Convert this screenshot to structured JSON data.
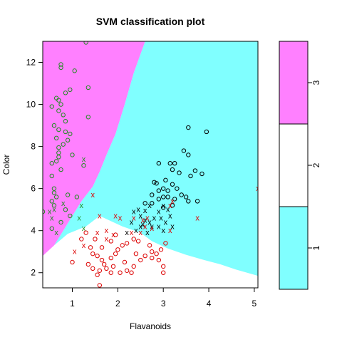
{
  "chart_data": {
    "type": "scatter",
    "title": "SVM classification plot",
    "xlabel": "Flavanoids",
    "ylabel": "Color",
    "xlim": [
      0.35,
      5.08
    ],
    "ylim": [
      1.28,
      13.0
    ],
    "x_ticks": [
      1,
      2,
      3,
      4,
      5
    ],
    "y_ticks": [
      2,
      4,
      6,
      8,
      10,
      12
    ],
    "legend": {
      "placement": "right",
      "levels": [
        {
          "label": "1",
          "color": "#80ffff"
        },
        {
          "label": "2",
          "color": "#ffffff"
        },
        {
          "label": "3",
          "color": "#ff80ff"
        }
      ]
    },
    "regions": {
      "class3_color": "#ff80ff",
      "class1_color": "#80ffff",
      "class2_color": "#ffffff",
      "class3_boundary": [
        [
          0.35,
          2.8
        ],
        [
          0.6,
          3.3
        ],
        [
          0.8,
          4.0
        ],
        [
          1.0,
          4.7
        ],
        [
          1.2,
          5.4
        ],
        [
          1.45,
          6.1
        ],
        [
          1.6,
          6.8
        ],
        [
          1.75,
          7.6
        ],
        [
          1.95,
          8.6
        ],
        [
          2.15,
          10.0
        ],
        [
          2.35,
          11.5
        ],
        [
          2.6,
          13.0
        ]
      ],
      "class2_boundary": [
        [
          0.6,
          3.3
        ],
        [
          0.9,
          3.85
        ],
        [
          1.3,
          4.2
        ],
        [
          1.6,
          4.7
        ],
        [
          1.85,
          4.45
        ],
        [
          2.1,
          4.2
        ],
        [
          2.5,
          3.9
        ],
        [
          2.75,
          3.5
        ],
        [
          3.1,
          3.15
        ],
        [
          3.5,
          2.85
        ],
        [
          3.9,
          2.6
        ],
        [
          4.25,
          2.4
        ],
        [
          4.6,
          2.15
        ],
        [
          5.08,
          1.85
        ]
      ]
    },
    "series": [
      {
        "class": "3",
        "color": "#228B22",
        "support_vectors": [
          [
            1.25,
            7.4
          ],
          [
            0.55,
            4.6
          ],
          [
            0.5,
            4.9
          ],
          [
            0.6,
            5.0
          ],
          [
            0.8,
            5.3
          ],
          [
            0.65,
            3.9
          ],
          [
            1.2,
            5.2
          ],
          [
            1.15,
            4.6
          ],
          [
            1.25,
            4.1
          ]
        ],
        "points": [
          [
            1.3,
            12.95
          ],
          [
            0.75,
            11.9
          ],
          [
            0.75,
            11.75
          ],
          [
            1.05,
            11.6
          ],
          [
            0.95,
            10.7
          ],
          [
            0.85,
            10.55
          ],
          [
            1.35,
            10.8
          ],
          [
            0.65,
            10.3
          ],
          [
            0.7,
            10.2
          ],
          [
            0.75,
            10.0
          ],
          [
            0.55,
            9.9
          ],
          [
            0.7,
            9.7
          ],
          [
            0.8,
            9.5
          ],
          [
            0.85,
            9.2
          ],
          [
            1.35,
            9.4
          ],
          [
            0.6,
            9.0
          ],
          [
            0.7,
            8.8
          ],
          [
            0.85,
            8.7
          ],
          [
            0.9,
            8.3
          ],
          [
            0.95,
            8.6
          ],
          [
            0.65,
            8.4
          ],
          [
            0.8,
            8.1
          ],
          [
            0.7,
            7.95
          ],
          [
            0.7,
            7.7
          ],
          [
            0.7,
            7.5
          ],
          [
            0.65,
            7.3
          ],
          [
            0.55,
            7.2
          ],
          [
            0.55,
            6.6
          ],
          [
            1.0,
            7.6
          ],
          [
            0.75,
            6.9
          ],
          [
            1.25,
            7.1
          ],
          [
            0.6,
            6.0
          ],
          [
            0.6,
            5.8
          ],
          [
            0.65,
            5.6
          ],
          [
            0.55,
            5.4
          ],
          [
            0.6,
            5.2
          ],
          [
            0.9,
            5.7
          ],
          [
            1.1,
            5.6
          ],
          [
            0.35,
            4.9
          ],
          [
            0.55,
            4.1
          ],
          [
            0.75,
            4.4
          ],
          [
            0.85,
            5.0
          ],
          [
            0.95,
            4.7
          ]
        ]
      },
      {
        "class": "2",
        "color": "#000000",
        "support_vectors": [
          [
            2.5,
            4.7
          ],
          [
            2.6,
            4.5
          ],
          [
            2.7,
            4.4
          ],
          [
            2.55,
            4.3
          ],
          [
            2.75,
            4.2
          ],
          [
            2.8,
            4.6
          ],
          [
            2.9,
            4.9
          ],
          [
            3.0,
            5.2
          ],
          [
            2.95,
            4.6
          ],
          [
            3.05,
            4.4
          ],
          [
            3.15,
            4.7
          ],
          [
            3.1,
            5.0
          ],
          [
            2.35,
            4.9
          ],
          [
            2.45,
            5.0
          ],
          [
            2.3,
            4.4
          ],
          [
            2.4,
            4.0
          ],
          [
            2.2,
            3.9
          ],
          [
            2.65,
            3.9
          ],
          [
            2.9,
            4.2
          ],
          [
            3.0,
            4.0
          ],
          [
            2.5,
            4.2
          ],
          [
            2.7,
            5.2
          ],
          [
            2.6,
            4.95
          ],
          [
            3.2,
            4.2
          ]
        ],
        "points": [
          [
            3.55,
            8.9
          ],
          [
            3.95,
            8.7
          ],
          [
            3.45,
            7.8
          ],
          [
            3.55,
            7.6
          ],
          [
            2.9,
            7.2
          ],
          [
            3.15,
            7.2
          ],
          [
            3.25,
            7.2
          ],
          [
            3.2,
            6.9
          ],
          [
            3.35,
            6.75
          ],
          [
            3.7,
            6.85
          ],
          [
            3.6,
            6.6
          ],
          [
            3.85,
            6.7
          ],
          [
            2.8,
            6.3
          ],
          [
            2.85,
            6.25
          ],
          [
            3.05,
            6.4
          ],
          [
            3.2,
            6.2
          ],
          [
            3.0,
            6.0
          ],
          [
            2.9,
            5.9
          ],
          [
            3.1,
            5.9
          ],
          [
            3.3,
            6.0
          ],
          [
            3.1,
            5.6
          ],
          [
            3.25,
            5.5
          ],
          [
            3.0,
            5.6
          ],
          [
            3.5,
            5.6
          ],
          [
            3.4,
            5.7
          ],
          [
            2.9,
            5.5
          ],
          [
            2.75,
            5.3
          ],
          [
            3.0,
            5.1
          ],
          [
            3.2,
            5.2
          ],
          [
            3.55,
            5.4
          ],
          [
            3.75,
            5.4
          ],
          [
            2.6,
            5.3
          ],
          [
            2.75,
            5.7
          ]
        ]
      },
      {
        "class": "1",
        "color": "#dd0000",
        "support_vectors": [
          [
            1.45,
            5.7
          ],
          [
            1.6,
            4.7
          ],
          [
            1.95,
            4.7
          ],
          [
            2.05,
            4.6
          ],
          [
            2.35,
            4.6
          ],
          [
            2.55,
            4.5
          ],
          [
            2.65,
            4.6
          ],
          [
            1.75,
            4.0
          ],
          [
            1.9,
            3.8
          ],
          [
            2.6,
            4.2
          ],
          [
            2.75,
            4.1
          ],
          [
            1.75,
            3.6
          ],
          [
            2.3,
            3.9
          ],
          [
            2.5,
            3.9
          ],
          [
            3.15,
            5.2
          ],
          [
            3.2,
            5.4
          ],
          [
            3.15,
            4.0
          ],
          [
            3.75,
            4.6
          ],
          [
            5.08,
            6.0
          ],
          [
            1.25,
            3.3
          ],
          [
            1.05,
            3.0
          ],
          [
            1.55,
            3.9
          ]
        ],
        "points": [
          [
            1.5,
            3.6
          ],
          [
            1.65,
            3.2
          ],
          [
            1.85,
            3.5
          ],
          [
            1.95,
            3.8
          ],
          [
            2.1,
            3.3
          ],
          [
            2.2,
            3.4
          ],
          [
            2.35,
            3.6
          ],
          [
            2.45,
            3.5
          ],
          [
            1.4,
            3.2
          ],
          [
            1.45,
            2.9
          ],
          [
            1.55,
            2.8
          ],
          [
            1.65,
            2.6
          ],
          [
            1.7,
            2.4
          ],
          [
            1.85,
            2.7
          ],
          [
            1.95,
            2.9
          ],
          [
            2.0,
            3.1
          ],
          [
            1.6,
            2.1
          ],
          [
            1.75,
            2.2
          ],
          [
            2.05,
            2.0
          ],
          [
            2.2,
            2.1
          ],
          [
            2.35,
            2.3
          ],
          [
            2.5,
            2.6
          ],
          [
            2.6,
            2.8
          ],
          [
            2.75,
            3.0
          ],
          [
            2.85,
            2.9
          ],
          [
            2.95,
            3.1
          ],
          [
            3.05,
            3.4
          ],
          [
            2.9,
            2.6
          ],
          [
            3.0,
            2.3
          ],
          [
            1.85,
            2.0
          ],
          [
            2.15,
            2.5
          ],
          [
            1.2,
            3.6
          ],
          [
            1.3,
            3.9
          ],
          [
            1.35,
            2.4
          ],
          [
            1.45,
            2.2
          ],
          [
            1.55,
            1.9
          ],
          [
            1.0,
            2.5
          ],
          [
            1.6,
            1.4
          ],
          [
            2.3,
            2.0
          ],
          [
            2.75,
            2.7
          ],
          [
            1.9,
            2.3
          ],
          [
            2.4,
            2.9
          ],
          [
            2.7,
            3.3
          ],
          [
            3.0,
            2.0
          ]
        ]
      }
    ]
  }
}
